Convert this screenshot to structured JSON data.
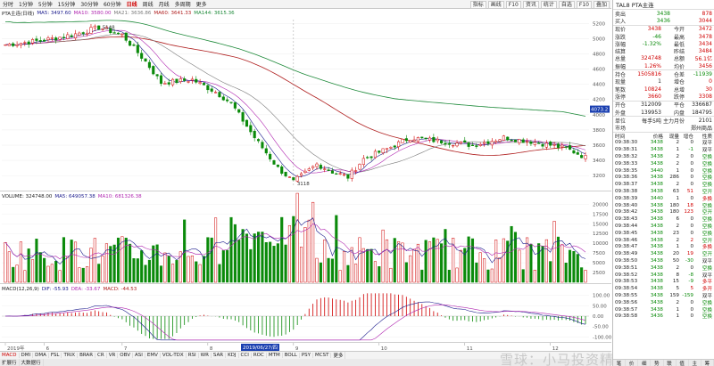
{
  "toolbar": {
    "periods": [
      "分时",
      "1分钟",
      "5分钟",
      "15分钟",
      "30分钟",
      "60分钟",
      "日线",
      "周线",
      "月线",
      "多周期",
      "更多"
    ],
    "active_period": "日线",
    "right_buttons": [
      "指标",
      "画线",
      "F10",
      "资讯",
      "统计",
      "自选",
      "F10",
      "叠加"
    ]
  },
  "legend_main": {
    "label": "PTA主连(日线)",
    "ma5": "MA5: 3497.60",
    "ma10": "MA10: 3580.00",
    "ma21": "MA21: 3636.86",
    "ma60": "MA60: 3641.33",
    "ma144": "MA144: 3615.36"
  },
  "price_axis": [
    "5200",
    "5000",
    "4800",
    "4600",
    "4400",
    "4200",
    "4000",
    "3800",
    "3600",
    "3400",
    "3200"
  ],
  "price_annotations": {
    "high": "5148",
    "low": "3118",
    "current_tag": "4073.2"
  },
  "legend_volume": {
    "label": "VOLUME: 324748.00",
    "ma5": "MA5: 649057.38",
    "ma10": "MA10: 681326.38"
  },
  "volume_axis": [
    "20000",
    "17500",
    "15000",
    "12500",
    "10000",
    "7500",
    "5000",
    "2500"
  ],
  "legend_macd": {
    "label": "MACD(12,26,9)",
    "dif": "DIF: -55.93",
    "dea": "DEA: -33.67",
    "macd": "MACD: -44.53"
  },
  "macd_axis": [
    "100.00",
    "50.00",
    "0.00",
    "-50.00",
    "-100.00"
  ],
  "date_axis": [
    "2019年",
    "6",
    "7",
    "8",
    "9",
    "10",
    "11",
    "12"
  ],
  "cursor_date": "2019/06/27/四",
  "indicator_tabs": [
    "MACD",
    "DMI",
    "DMA",
    "FSL",
    "TRIX",
    "BRAR",
    "CR",
    "VR",
    "OBV",
    "ASI",
    "EMV",
    "VOL-TDX",
    "RSI",
    "WR",
    "SAR",
    "KDJ",
    "CCI",
    "ROC",
    "MTM",
    "BOLL",
    "PSY",
    "MCST",
    "更多"
  ],
  "active_indicator": "MACD",
  "bottom_tabs": [
    "扩展行",
    "大数据行"
  ],
  "side": {
    "title": "TAL8  PTA主连",
    "ask": {
      "label": "卖出",
      "price": "3438",
      "vol": "878"
    },
    "bid": {
      "label": "买入",
      "price": "3436",
      "vol": "3044"
    },
    "quote_rows": [
      {
        "l": "现价",
        "v": "3438",
        "l2": "今开",
        "v2": "3472"
      },
      {
        "l": "涨跌",
        "v": "-46",
        "l2": "最高",
        "v2": "3478"
      },
      {
        "l": "涨幅",
        "v": "-1.32%",
        "l2": "最低",
        "v2": "3434"
      },
      {
        "l": "结算",
        "v": "",
        "l2": "昨结",
        "v2": "3484"
      },
      {
        "l": "总量",
        "v": "324748",
        "l2": "总额",
        "v2": "56.1亿"
      },
      {
        "l": "振幅",
        "v": "1.26%",
        "l2": "均价",
        "v2": "3456"
      }
    ],
    "position_rows": [
      {
        "l": "持仓",
        "v": "1505816",
        "l2": "仓差",
        "v2": "-11939"
      },
      {
        "l": "现量",
        "v": "1",
        "l2": "增仓",
        "v2": "0"
      },
      {
        "l": "笔数",
        "v": "10824",
        "l2": "总增",
        "v2": "30"
      },
      {
        "l": "涨停",
        "v": "3660",
        "l2": "跌停",
        "v2": "3308"
      }
    ],
    "side_rows": [
      {
        "l": "开仓",
        "v": "312009",
        "l2": "平仓",
        "v2": "336687"
      },
      {
        "l": "外盘",
        "v": "139953",
        "l2": "内盘",
        "v2": "184795"
      }
    ],
    "info_rows": [
      {
        "l": "单位",
        "v": "每手5吨",
        "l2": "主力月份",
        "v2": "2101"
      },
      {
        "l": "市场",
        "v": "",
        "l2": "",
        "v2": "郑州商品"
      }
    ],
    "tick_header": {
      "t": "时间",
      "p": "价格",
      "v": "现量",
      "o": "增仓",
      "n": "性质"
    },
    "ticks": [
      {
        "t": "09:38:30",
        "p": "3438",
        "v": "2",
        "o": "0",
        "n": "双平"
      },
      {
        "t": "09:38:31",
        "p": "3438",
        "v": "1",
        "o": "-1",
        "n": "双平"
      },
      {
        "t": "09:38:32",
        "p": "3438",
        "v": "2",
        "o": "0",
        "n": "空换"
      },
      {
        "t": "09:38:33",
        "p": "3438",
        "v": "2",
        "o": "0",
        "n": "空换"
      },
      {
        "t": "09:38:35",
        "p": "3440",
        "v": "1",
        "o": "0",
        "n": "空换"
      },
      {
        "t": "09:38:36",
        "p": "3438",
        "v": "286",
        "o": "0",
        "n": "空换"
      },
      {
        "t": "09:38:37",
        "p": "3438",
        "v": "2",
        "o": "0",
        "n": "空换"
      },
      {
        "t": "09:38:38",
        "p": "3438",
        "v": "63",
        "o": "51",
        "n": "空开"
      },
      {
        "t": "09:38:39",
        "p": "3440",
        "v": "1",
        "o": "0",
        "n": "多换"
      },
      {
        "t": "09:38:40",
        "p": "3438",
        "v": "180",
        "o": "18",
        "n": "空换"
      },
      {
        "t": "09:38:42",
        "p": "3438",
        "v": "180",
        "o": "123",
        "n": "空开"
      },
      {
        "t": "09:38:43",
        "p": "3438",
        "v": "6",
        "o": "0",
        "n": "空换"
      },
      {
        "t": "09:38:44",
        "p": "3438",
        "v": "2",
        "o": "0",
        "n": "空换"
      },
      {
        "t": "09:38:45",
        "p": "3438",
        "v": "23",
        "o": "0",
        "n": "空换"
      },
      {
        "t": "09:38:46",
        "p": "3438",
        "v": "2",
        "o": "2",
        "n": "空开"
      },
      {
        "t": "09:38:47",
        "p": "3438",
        "v": "1",
        "o": "0",
        "n": "多换"
      },
      {
        "t": "09:38:49",
        "p": "3438",
        "v": "20",
        "o": "19",
        "n": "空开"
      },
      {
        "t": "09:38:50",
        "p": "3438",
        "v": "50",
        "o": "-30",
        "n": "双平"
      },
      {
        "t": "09:38:51",
        "p": "3438",
        "v": "2",
        "o": "0",
        "n": "空换"
      },
      {
        "t": "09:38:52",
        "p": "3438",
        "v": "8",
        "o": "-8",
        "n": "双平"
      },
      {
        "t": "09:38:53",
        "p": "3438",
        "v": "15",
        "o": "-9",
        "n": "多平"
      },
      {
        "t": "09:38:54",
        "p": "3438",
        "v": "5",
        "o": "5",
        "n": "多开"
      },
      {
        "t": "09:38:55",
        "p": "3438",
        "v": "159",
        "o": "-159",
        "n": "双平"
      },
      {
        "t": "09:38:56",
        "p": "3438",
        "v": "2",
        "o": "0",
        "n": "空换"
      },
      {
        "t": "09:38:57",
        "p": "3438",
        "v": "1",
        "o": "0",
        "n": "空换"
      },
      {
        "t": "09:38:58",
        "p": "3436",
        "v": "1",
        "o": "0",
        "n": "空换"
      }
    ],
    "bottom_tabs": [
      "笔",
      "价",
      "细",
      "势",
      "联",
      "值",
      "主",
      "筹"
    ]
  },
  "watermark": "雪球：小马投资精选",
  "colors": {
    "up": "#d00000",
    "down": "#0a8a0a",
    "ma5": "#1a1a8c",
    "ma10": "#b026b0",
    "ma21": "#7a7a7a",
    "ma60": "#b02020",
    "ma144": "#1e8a3a",
    "cursor": "#1a3fb0"
  }
}
